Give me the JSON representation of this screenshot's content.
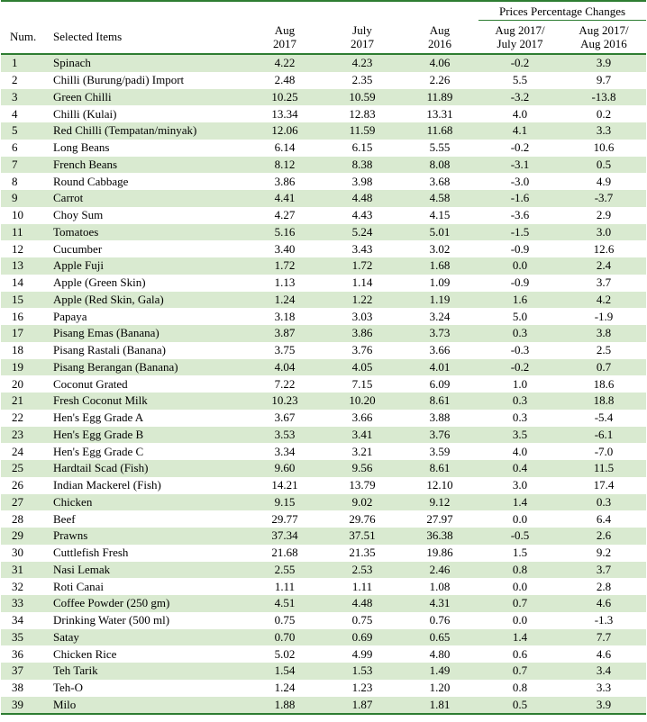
{
  "header": {
    "group_label": "Prices Percentage Changes",
    "num": "Num.",
    "item": "Selected Items",
    "col1_l1": "Aug",
    "col1_l2": "2017",
    "col2_l1": "July",
    "col2_l2": "2017",
    "col3_l1": "Aug",
    "col3_l2": "2016",
    "col4_l1": "Aug 2017/",
    "col4_l2": "July 2017",
    "col5_l1": "Aug  2017/",
    "col5_l2": "Aug 2016"
  },
  "rows": [
    {
      "num": "1",
      "item": "Spinach",
      "aug2017": "4.22",
      "jul2017": "4.23",
      "aug2016": "4.06",
      "pct_month": "-0.2",
      "pct_year": "3.9"
    },
    {
      "num": "2",
      "item": "Chilli (Burung/padi) Import",
      "aug2017": "2.48",
      "jul2017": "2.35",
      "aug2016": "2.26",
      "pct_month": "5.5",
      "pct_year": "9.7"
    },
    {
      "num": "3",
      "item": "Green Chilli",
      "aug2017": "10.25",
      "jul2017": "10.59",
      "aug2016": "11.89",
      "pct_month": "-3.2",
      "pct_year": "-13.8"
    },
    {
      "num": "4",
      "item": "Chilli (Kulai)",
      "aug2017": "13.34",
      "jul2017": "12.83",
      "aug2016": "13.31",
      "pct_month": "4.0",
      "pct_year": "0.2"
    },
    {
      "num": "5",
      "item": "Red Chilli (Tempatan/minyak)",
      "aug2017": "12.06",
      "jul2017": "11.59",
      "aug2016": "11.68",
      "pct_month": "4.1",
      "pct_year": "3.3"
    },
    {
      "num": "6",
      "item": "Long Beans",
      "aug2017": "6.14",
      "jul2017": "6.15",
      "aug2016": "5.55",
      "pct_month": "-0.2",
      "pct_year": "10.6"
    },
    {
      "num": "7",
      "item": "French Beans",
      "aug2017": "8.12",
      "jul2017": "8.38",
      "aug2016": "8.08",
      "pct_month": "-3.1",
      "pct_year": "0.5"
    },
    {
      "num": "8",
      "item": "Round Cabbage",
      "aug2017": "3.86",
      "jul2017": "3.98",
      "aug2016": "3.68",
      "pct_month": "-3.0",
      "pct_year": "4.9"
    },
    {
      "num": "9",
      "item": "Carrot",
      "aug2017": "4.41",
      "jul2017": "4.48",
      "aug2016": "4.58",
      "pct_month": "-1.6",
      "pct_year": "-3.7"
    },
    {
      "num": "10",
      "item": "Choy Sum",
      "aug2017": "4.27",
      "jul2017": "4.43",
      "aug2016": "4.15",
      "pct_month": "-3.6",
      "pct_year": "2.9"
    },
    {
      "num": "11",
      "item": "Tomatoes",
      "aug2017": "5.16",
      "jul2017": "5.24",
      "aug2016": "5.01",
      "pct_month": "-1.5",
      "pct_year": "3.0"
    },
    {
      "num": "12",
      "item": "Cucumber",
      "aug2017": "3.40",
      "jul2017": "3.43",
      "aug2016": "3.02",
      "pct_month": "-0.9",
      "pct_year": "12.6"
    },
    {
      "num": "13",
      "item": "Apple Fuji",
      "aug2017": "1.72",
      "jul2017": "1.72",
      "aug2016": "1.68",
      "pct_month": "0.0",
      "pct_year": "2.4"
    },
    {
      "num": "14",
      "item": "Apple (Green Skin)",
      "aug2017": "1.13",
      "jul2017": "1.14",
      "aug2016": "1.09",
      "pct_month": "-0.9",
      "pct_year": "3.7"
    },
    {
      "num": "15",
      "item": "Apple (Red Skin, Gala)",
      "aug2017": "1.24",
      "jul2017": "1.22",
      "aug2016": "1.19",
      "pct_month": "1.6",
      "pct_year": "4.2"
    },
    {
      "num": "16",
      "item": "Papaya",
      "aug2017": "3.18",
      "jul2017": "3.03",
      "aug2016": "3.24",
      "pct_month": "5.0",
      "pct_year": "-1.9"
    },
    {
      "num": "17",
      "item": "Pisang Emas (Banana)",
      "aug2017": "3.87",
      "jul2017": "3.86",
      "aug2016": "3.73",
      "pct_month": "0.3",
      "pct_year": "3.8"
    },
    {
      "num": "18",
      "item": "Pisang Rastali (Banana)",
      "aug2017": "3.75",
      "jul2017": "3.76",
      "aug2016": "3.66",
      "pct_month": "-0.3",
      "pct_year": "2.5"
    },
    {
      "num": "19",
      "item": "Pisang Berangan (Banana)",
      "aug2017": "4.04",
      "jul2017": "4.05",
      "aug2016": "4.01",
      "pct_month": "-0.2",
      "pct_year": "0.7"
    },
    {
      "num": "20",
      "item": "Coconut Grated",
      "aug2017": "7.22",
      "jul2017": "7.15",
      "aug2016": "6.09",
      "pct_month": "1.0",
      "pct_year": "18.6"
    },
    {
      "num": "21",
      "item": "Fresh Coconut Milk",
      "aug2017": "10.23",
      "jul2017": "10.20",
      "aug2016": "8.61",
      "pct_month": "0.3",
      "pct_year": "18.8"
    },
    {
      "num": "22",
      "item": "Hen's Egg Grade A",
      "aug2017": "3.67",
      "jul2017": "3.66",
      "aug2016": "3.88",
      "pct_month": "0.3",
      "pct_year": "-5.4"
    },
    {
      "num": "23",
      "item": "Hen's Egg Grade B",
      "aug2017": "3.53",
      "jul2017": "3.41",
      "aug2016": "3.76",
      "pct_month": "3.5",
      "pct_year": "-6.1"
    },
    {
      "num": "24",
      "item": "Hen's Egg Grade C",
      "aug2017": "3.34",
      "jul2017": "3.21",
      "aug2016": "3.59",
      "pct_month": "4.0",
      "pct_year": "-7.0"
    },
    {
      "num": "25",
      "item": "Hardtail Scad (Fish)",
      "aug2017": "9.60",
      "jul2017": "9.56",
      "aug2016": "8.61",
      "pct_month": "0.4",
      "pct_year": "11.5"
    },
    {
      "num": "26",
      "item": "Indian Mackerel (Fish)",
      "aug2017": "14.21",
      "jul2017": "13.79",
      "aug2016": "12.10",
      "pct_month": "3.0",
      "pct_year": "17.4"
    },
    {
      "num": "27",
      "item": "Chicken",
      "aug2017": "9.15",
      "jul2017": "9.02",
      "aug2016": "9.12",
      "pct_month": "1.4",
      "pct_year": "0.3"
    },
    {
      "num": "28",
      "item": "Beef",
      "aug2017": "29.77",
      "jul2017": "29.76",
      "aug2016": "27.97",
      "pct_month": "0.0",
      "pct_year": "6.4"
    },
    {
      "num": "29",
      "item": "Prawns",
      "aug2017": "37.34",
      "jul2017": "37.51",
      "aug2016": "36.38",
      "pct_month": "-0.5",
      "pct_year": "2.6"
    },
    {
      "num": "30",
      "item": "Cuttlefish Fresh",
      "aug2017": "21.68",
      "jul2017": "21.35",
      "aug2016": "19.86",
      "pct_month": "1.5",
      "pct_year": "9.2"
    },
    {
      "num": "31",
      "item": "Nasi Lemak",
      "aug2017": "2.55",
      "jul2017": "2.53",
      "aug2016": "2.46",
      "pct_month": "0.8",
      "pct_year": "3.7"
    },
    {
      "num": "32",
      "item": "Roti Canai",
      "aug2017": "1.11",
      "jul2017": "1.11",
      "aug2016": "1.08",
      "pct_month": "0.0",
      "pct_year": "2.8"
    },
    {
      "num": "33",
      "item": "Coffee Powder (250 gm)",
      "aug2017": "4.51",
      "jul2017": "4.48",
      "aug2016": "4.31",
      "pct_month": "0.7",
      "pct_year": "4.6"
    },
    {
      "num": "34",
      "item": "Drinking Water (500 ml)",
      "aug2017": "0.75",
      "jul2017": "0.75",
      "aug2016": "0.76",
      "pct_month": "0.0",
      "pct_year": "-1.3"
    },
    {
      "num": "35",
      "item": "Satay",
      "aug2017": "0.70",
      "jul2017": "0.69",
      "aug2016": "0.65",
      "pct_month": "1.4",
      "pct_year": "7.7"
    },
    {
      "num": "36",
      "item": "Chicken Rice",
      "aug2017": "5.02",
      "jul2017": "4.99",
      "aug2016": "4.80",
      "pct_month": "0.6",
      "pct_year": "4.6"
    },
    {
      "num": "37",
      "item": "Teh Tarik",
      "aug2017": "1.54",
      "jul2017": "1.53",
      "aug2016": "1.49",
      "pct_month": "0.7",
      "pct_year": "3.4"
    },
    {
      "num": "38",
      "item": "Teh-O",
      "aug2017": "1.24",
      "jul2017": "1.23",
      "aug2016": "1.20",
      "pct_month": "0.8",
      "pct_year": "3.3"
    },
    {
      "num": "39",
      "item": "Milo",
      "aug2017": "1.88",
      "jul2017": "1.87",
      "aug2016": "1.81",
      "pct_month": "0.5",
      "pct_year": "3.9"
    }
  ]
}
